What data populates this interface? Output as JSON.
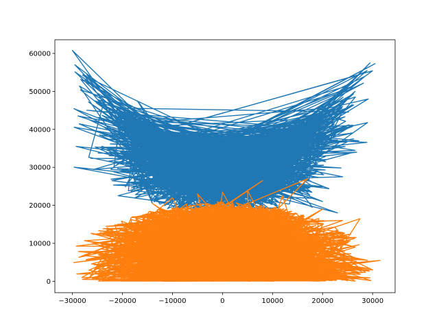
{
  "chart_data": {
    "type": "line",
    "title": "",
    "xlabel": "",
    "ylabel": "",
    "xlim": [
      -33500,
      34500
    ],
    "ylim": [
      -3000,
      63600
    ],
    "grid": false,
    "legend": "none",
    "x_ticks": [
      {
        "value": -30000,
        "label": "−30000"
      },
      {
        "value": -20000,
        "label": "−20000"
      },
      {
        "value": -10000,
        "label": "−10000"
      },
      {
        "value": 0,
        "label": "0"
      },
      {
        "value": 10000,
        "label": "10000"
      },
      {
        "value": 20000,
        "label": "20000"
      },
      {
        "value": 30000,
        "label": "30000"
      }
    ],
    "y_ticks": [
      {
        "value": 0,
        "label": "0"
      },
      {
        "value": 10000,
        "label": "10000"
      },
      {
        "value": 20000,
        "label": "20000"
      },
      {
        "value": 30000,
        "label": "30000"
      },
      {
        "value": 40000,
        "label": "40000"
      },
      {
        "value": 50000,
        "label": "50000"
      },
      {
        "value": 60000,
        "label": "60000"
      }
    ],
    "series": [
      {
        "color": "#1f77b4",
        "description_points": [
          [
            -30000,
            60800
          ],
          [
            -29500,
            57000
          ],
          [
            -27500,
            53000
          ],
          [
            -25500,
            47500
          ],
          [
            -22500,
            44000
          ],
          [
            -20000,
            40500
          ],
          [
            -16500,
            38000
          ],
          [
            -13000,
            36500
          ],
          [
            -10000,
            35500
          ],
          [
            -6000,
            34800
          ],
          [
            -2000,
            34200
          ],
          [
            2000,
            34000
          ],
          [
            6000,
            34500
          ],
          [
            10000,
            35500
          ],
          [
            14000,
            37000
          ],
          [
            18000,
            39500
          ],
          [
            21000,
            42500
          ],
          [
            24000,
            46000
          ],
          [
            26500,
            50000
          ],
          [
            28500,
            54000
          ],
          [
            29500,
            57500
          ],
          [
            30500,
            57300
          ],
          [
            -17000,
            47500
          ],
          [
            13000,
            42500
          ],
          [
            -17500,
            22000
          ],
          [
            -14000,
            20500
          ],
          [
            -10000,
            19000
          ],
          [
            0,
            18000
          ],
          [
            10000,
            18500
          ],
          [
            18000,
            19500
          ],
          [
            20000,
            21000
          ],
          [
            23000,
            18000
          ]
        ]
      },
      {
        "color": "#ff7f0e",
        "description_points": [
          [
            -28000,
            500
          ],
          [
            -26000,
            2000
          ],
          [
            -24000,
            6000
          ],
          [
            -23000,
            12000
          ],
          [
            -21000,
            15000
          ],
          [
            -18000,
            17000
          ],
          [
            -14000,
            20500
          ],
          [
            -10000,
            22000
          ],
          [
            -5000,
            23000
          ],
          [
            0,
            23500
          ],
          [
            5000,
            24000
          ],
          [
            8000,
            26500
          ],
          [
            12000,
            22500
          ],
          [
            17000,
            27000
          ],
          [
            20000,
            19000
          ],
          [
            24000,
            16000
          ],
          [
            27500,
            16500
          ],
          [
            29000,
            5500
          ],
          [
            31500,
            5500
          ],
          [
            30000,
            3000
          ],
          [
            25000,
            300
          ],
          [
            10000,
            0
          ],
          [
            -10000,
            0
          ],
          [
            -25000,
            500
          ]
        ]
      }
    ]
  }
}
